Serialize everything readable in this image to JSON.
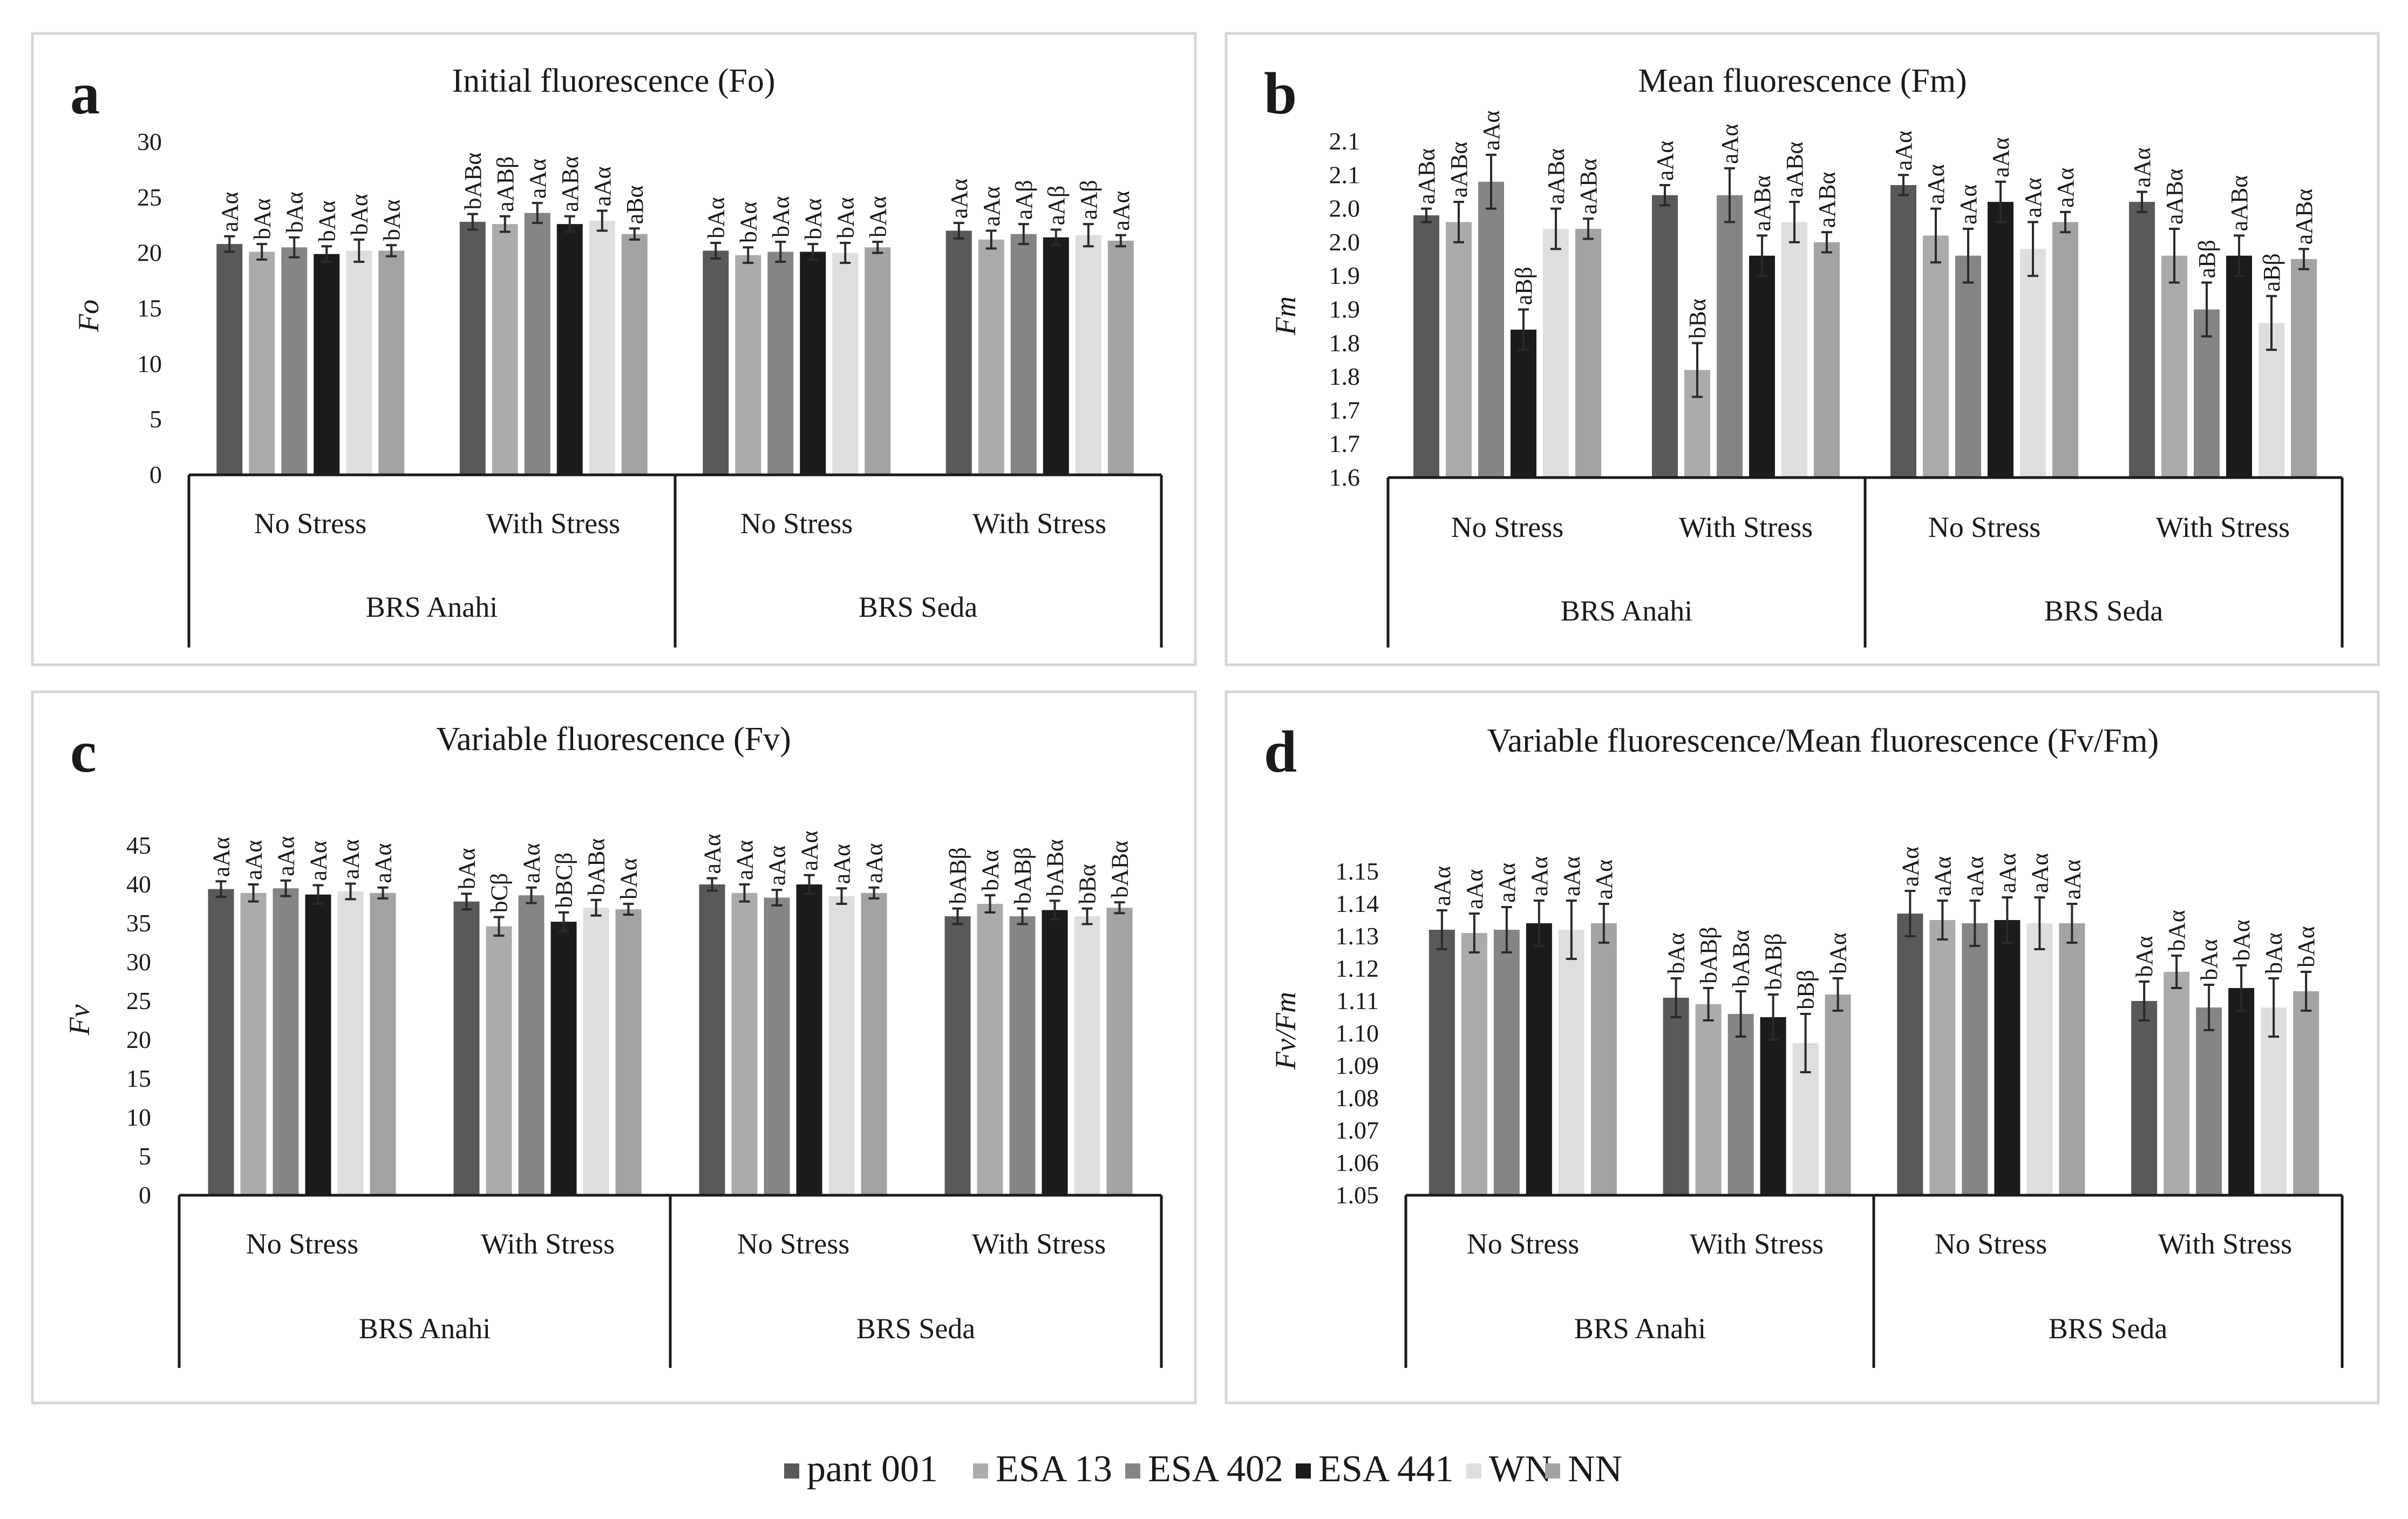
{
  "chart_data": [
    {
      "panel": "a",
      "type": "bar",
      "title": "Initial fluorescence (Fo)",
      "ylabel": "Fo",
      "ylim": [
        0,
        30
      ],
      "ytick_step": 5,
      "ytick_decimals": 0,
      "groups": [
        {
          "cultivar": "BRS Anahi",
          "condition": "No Stress",
          "values": [
            20.8,
            20.1,
            20.5,
            19.9,
            20.2,
            20.2
          ],
          "errors": [
            0.7,
            0.7,
            0.9,
            0.7,
            1.0,
            0.5
          ],
          "labels": [
            "aAα",
            "bAα",
            "bAα",
            "bAα",
            "bAα",
            "bAα"
          ]
        },
        {
          "cultivar": "BRS Anahi",
          "condition": "With Stress",
          "values": [
            22.8,
            22.6,
            23.6,
            22.6,
            22.9,
            21.7
          ],
          "errors": [
            0.7,
            0.7,
            0.9,
            0.7,
            0.9,
            0.5
          ],
          "labels": [
            "bABα",
            "aABβ",
            "aAα",
            "aABα",
            "aAα",
            "aBα"
          ]
        },
        {
          "cultivar": "BRS Seda",
          "condition": "No Stress",
          "values": [
            20.2,
            19.8,
            20.1,
            20.1,
            20.0,
            20.5
          ],
          "errors": [
            0.7,
            0.7,
            0.9,
            0.7,
            0.9,
            0.5
          ],
          "labels": [
            "bAα",
            "bAα",
            "bAα",
            "bAα",
            "bAα",
            "bAα"
          ]
        },
        {
          "cultivar": "BRS Seda",
          "condition": "With Stress",
          "values": [
            22.0,
            21.2,
            21.7,
            21.4,
            21.6,
            21.1
          ],
          "errors": [
            0.7,
            0.8,
            0.9,
            0.7,
            1.0,
            0.5
          ],
          "labels": [
            "aAα",
            "aAα",
            "aAβ",
            "aAβ",
            "aAβ",
            "aAα"
          ]
        }
      ]
    },
    {
      "panel": "b",
      "type": "bar",
      "title": "Mean fluorescence (Fm)",
      "ylabel": "Fm",
      "ylim": [
        1.6,
        2.1
      ],
      "ytick_step": 0.05,
      "ytick_labels": [
        "1.6",
        "1.7",
        "1.7",
        "1.8",
        "1.8",
        "1.9",
        "1.9",
        "2.0",
        "2.0",
        "2.1",
        "2.1"
      ],
      "groups": [
        {
          "cultivar": "BRS Anahi",
          "condition": "No Stress",
          "values": [
            1.99,
            1.98,
            2.04,
            1.82,
            1.97,
            1.97
          ],
          "errors": [
            0.01,
            0.03,
            0.04,
            0.03,
            0.03,
            0.015
          ],
          "labels": [
            "aABα",
            "aABα",
            "aAα",
            "aBβ",
            "aABα",
            "aABα"
          ]
        },
        {
          "cultivar": "BRS Anahi",
          "condition": "With Stress",
          "values": [
            2.02,
            1.76,
            2.02,
            1.93,
            1.98,
            1.95
          ],
          "errors": [
            0.015,
            0.04,
            0.04,
            0.03,
            0.03,
            0.015
          ],
          "labels": [
            "aAα",
            "bBα",
            "aAα",
            "aABα",
            "aABα",
            "aABα"
          ]
        },
        {
          "cultivar": "BRS Seda",
          "condition": "No Stress",
          "values": [
            2.035,
            1.96,
            1.93,
            2.01,
            1.94,
            1.98
          ],
          "errors": [
            0.015,
            0.04,
            0.04,
            0.03,
            0.04,
            0.015
          ],
          "labels": [
            "aAα",
            "aAα",
            "aAα",
            "aAα",
            "aAα",
            "aAα"
          ]
        },
        {
          "cultivar": "BRS Seda",
          "condition": "With Stress",
          "values": [
            2.01,
            1.93,
            1.85,
            1.93,
            1.83,
            1.925
          ],
          "errors": [
            0.015,
            0.04,
            0.04,
            0.03,
            0.04,
            0.015
          ],
          "labels": [
            "aAα",
            "aABα",
            "aBβ",
            "aABα",
            "aBβ",
            "aABα"
          ]
        }
      ]
    },
    {
      "panel": "c",
      "type": "bar",
      "title": "Variable fluorescence (Fv)",
      "ylabel": "Fv",
      "ylim": [
        0,
        45
      ],
      "ytick_step": 5,
      "ytick_decimals": 0,
      "groups": [
        {
          "cultivar": "BRS Anahi",
          "condition": "No Stress",
          "values": [
            39.4,
            38.9,
            39.5,
            38.7,
            39.1,
            38.9
          ],
          "errors": [
            1.0,
            1.1,
            1.0,
            1.2,
            1.0,
            0.7
          ],
          "labels": [
            "aAα",
            "aAα",
            "aAα",
            "aAα",
            "aAα",
            "aAα"
          ]
        },
        {
          "cultivar": "BRS Anahi",
          "condition": "With Stress",
          "values": [
            37.8,
            34.6,
            38.6,
            35.2,
            37.0,
            36.8
          ],
          "errors": [
            1.0,
            1.2,
            1.0,
            1.2,
            1.0,
            0.7
          ],
          "labels": [
            "bAα",
            "bCβ",
            "aAα",
            "bBCβ",
            "bABα",
            "bAα"
          ]
        },
        {
          "cultivar": "BRS Seda",
          "condition": "No Stress",
          "values": [
            40.0,
            38.9,
            38.3,
            40.0,
            38.5,
            38.9
          ],
          "errors": [
            0.8,
            1.1,
            1.0,
            1.2,
            1.0,
            0.7
          ],
          "labels": [
            "aAα",
            "aAα",
            "aAα",
            "aAα",
            "aAα",
            "aAα"
          ]
        },
        {
          "cultivar": "BRS Seda",
          "condition": "With Stress",
          "values": [
            35.9,
            37.5,
            35.9,
            36.7,
            35.9,
            37.0
          ],
          "errors": [
            1.0,
            1.1,
            1.0,
            1.2,
            1.0,
            0.7
          ],
          "labels": [
            "bABβ",
            "bAα",
            "bABβ",
            "bABα",
            "bBα",
            "bABα"
          ]
        }
      ]
    },
    {
      "panel": "d",
      "type": "bar",
      "title": "Variable fluorescence/Mean  fluorescence (Fv/Fm)",
      "ylabel": "Fv/Fm",
      "ylim": [
        1.05,
        1.15
      ],
      "ytick_step": 0.01,
      "ytick_decimals": 2,
      "groups": [
        {
          "cultivar": "BRS Anahi",
          "condition": "No Stress",
          "values": [
            1.132,
            1.131,
            1.132,
            1.134,
            1.132,
            1.134
          ],
          "errors": [
            0.006,
            0.006,
            0.007,
            0.007,
            0.009,
            0.006
          ],
          "labels": [
            "aAα",
            "aAα",
            "aAα",
            "aAα",
            "aAα",
            "aAα"
          ]
        },
        {
          "cultivar": "BRS Anahi",
          "condition": "With Stress",
          "values": [
            1.111,
            1.109,
            1.106,
            1.105,
            1.097,
            1.112
          ],
          "errors": [
            0.006,
            0.005,
            0.007,
            0.007,
            0.009,
            0.005
          ],
          "labels": [
            "bAα",
            "bABβ",
            "bABα",
            "bABβ",
            "bBβ",
            "bAα"
          ]
        },
        {
          "cultivar": "BRS Seda",
          "condition": "No Stress",
          "values": [
            1.137,
            1.135,
            1.134,
            1.135,
            1.134,
            1.134
          ],
          "errors": [
            0.007,
            0.006,
            0.007,
            0.007,
            0.008,
            0.006
          ],
          "labels": [
            "aAα",
            "aAα",
            "aAα",
            "aAα",
            "aAα",
            "aAα"
          ]
        },
        {
          "cultivar": "BRS Seda",
          "condition": "With Stress",
          "values": [
            1.11,
            1.119,
            1.108,
            1.114,
            1.108,
            1.113
          ],
          "errors": [
            0.006,
            0.005,
            0.007,
            0.007,
            0.009,
            0.006
          ],
          "labels": [
            "bAα",
            "bAα",
            "bAα",
            "bAα",
            "bAα",
            "bAα"
          ]
        }
      ]
    }
  ],
  "legend": {
    "entries": [
      {
        "name": "pant 001",
        "color": "#595959"
      },
      {
        "name": "ESA 13",
        "color": "#ababab"
      },
      {
        "name": "ESA 402",
        "color": "#858585"
      },
      {
        "name": "ESA 441",
        "color": "#1c1c1c"
      },
      {
        "name": "WN",
        "color": "#dedede"
      },
      {
        "name": "NN",
        "color": "#a3a3a3"
      }
    ]
  }
}
